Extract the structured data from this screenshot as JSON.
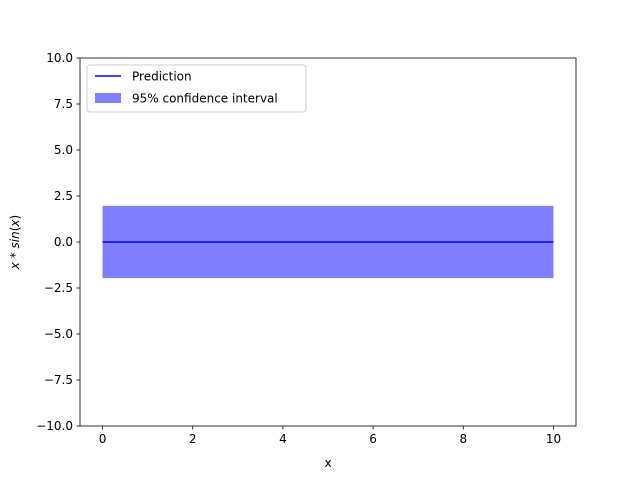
{
  "chart_data": {
    "type": "line",
    "title": "",
    "xlabel": "x",
    "ylabel": "x * sin(x)",
    "xlim": [
      -0.5,
      10.5
    ],
    "ylim": [
      -10,
      10
    ],
    "x_ticks": [
      0,
      2,
      4,
      6,
      8,
      10
    ],
    "x_tick_labels": [
      "0",
      "2",
      "4",
      "6",
      "8",
      "10"
    ],
    "y_ticks": [
      -10,
      -7.5,
      -5,
      -2.5,
      0,
      2.5,
      5,
      7.5,
      10
    ],
    "y_tick_labels": [
      "−10.0",
      "−7.5",
      "−5.0",
      "−2.5",
      "0.0",
      "2.5",
      "5.0",
      "7.5",
      "10.0"
    ],
    "grid": false,
    "legend_position": "top-left",
    "series": [
      {
        "name": "Prediction",
        "kind": "line",
        "color": "#0000ff",
        "x": [
          0,
          10
        ],
        "y": [
          0,
          0
        ]
      },
      {
        "name": "95% confidence interval",
        "kind": "band",
        "color": "#8080ff",
        "x": [
          0,
          10
        ],
        "y_lower": [
          -1.96,
          -1.96
        ],
        "y_upper": [
          1.96,
          1.96
        ]
      }
    ]
  }
}
